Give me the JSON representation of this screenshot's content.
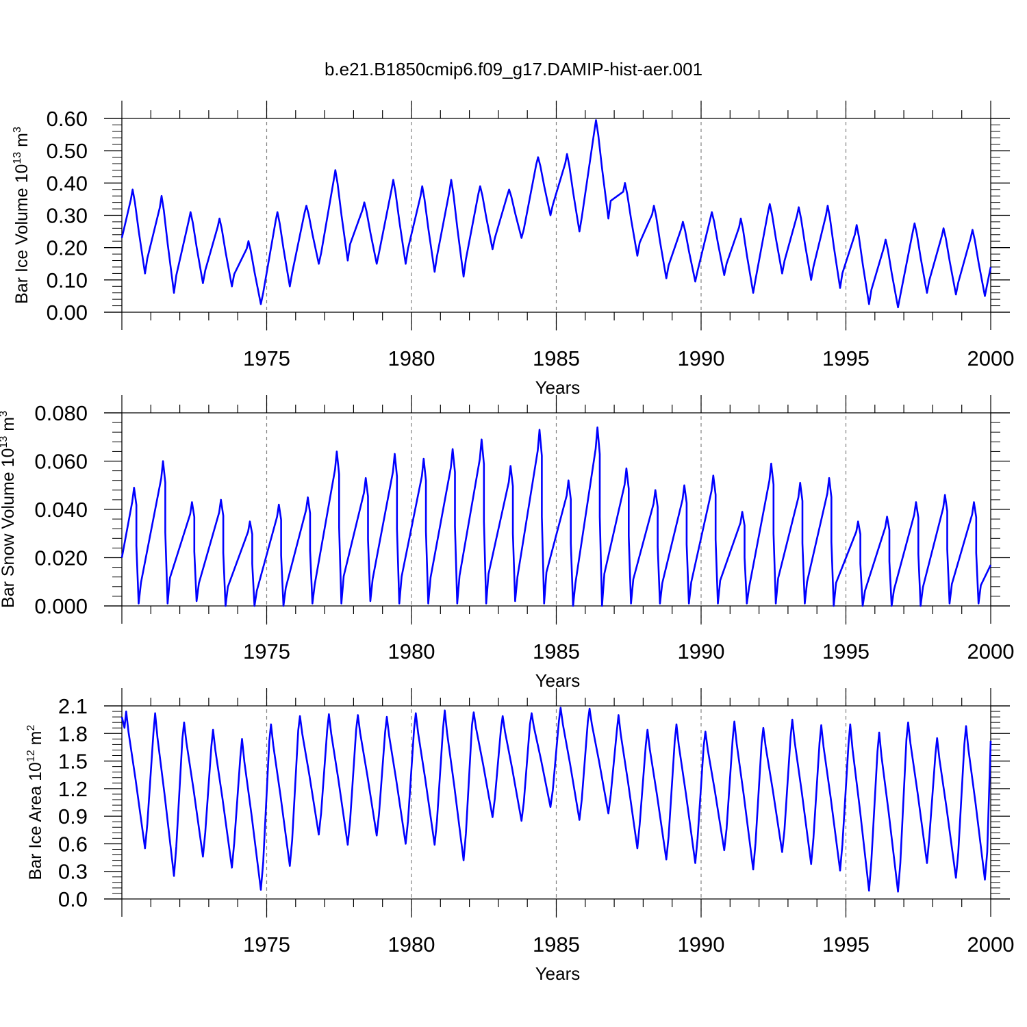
{
  "title": "b.e21.B1850cmip6.f09_g17.DAMIP-hist-aer.001",
  "colors": {
    "series": "#0000ff",
    "axis": "#000000",
    "grid": "#7f7f7f"
  },
  "x_domain": [
    1970.0,
    2000.0
  ],
  "x_ticks": [
    1975,
    1980,
    1985,
    1990,
    1995,
    2000
  ],
  "chart_data": [
    {
      "type": "line",
      "name": "ice-volume",
      "xlabel": "Years",
      "ylabel_main": "Bar Ice Volume 10",
      "ylabel_sup": "13",
      "ylabel_unit": " m",
      "ylabel_unit_sup": "3",
      "ylim": [
        0.0,
        0.6
      ],
      "y_ticks": [
        "0.00",
        "0.10",
        "0.20",
        "0.30",
        "0.40",
        "0.50",
        "0.60"
      ],
      "y_tick_values": [
        0.0,
        0.1,
        0.2,
        0.3,
        0.4,
        0.5,
        0.6
      ],
      "annual_peaks": [
        0.38,
        0.36,
        0.31,
        0.29,
        0.22,
        0.31,
        0.33,
        0.44,
        0.34,
        0.41,
        0.39,
        0.41,
        0.39,
        0.38,
        0.48,
        0.49,
        0.595,
        0.4,
        0.33,
        0.28,
        0.31,
        0.29,
        0.335,
        0.325,
        0.33,
        0.27,
        0.225,
        0.275,
        0.26,
        0.255
      ],
      "annual_troughs": [
        0.12,
        0.06,
        0.09,
        0.08,
        0.025,
        0.08,
        0.15,
        0.16,
        0.15,
        0.15,
        0.125,
        0.11,
        0.195,
        0.23,
        0.3,
        0.25,
        0.29,
        0.175,
        0.105,
        0.095,
        0.115,
        0.06,
        0.12,
        0.1,
        0.075,
        0.025,
        0.015,
        0.06,
        0.055,
        0.05
      ],
      "peak_phase": 0.37,
      "trough_phase": 0.8,
      "start_value": 0.23,
      "end_value": 0.14
    },
    {
      "type": "line",
      "name": "snow-volume",
      "xlabel": "Years",
      "ylabel_main": "Bar Snow Volume 10",
      "ylabel_sup": "13",
      "ylabel_unit": " m",
      "ylabel_unit_sup": "3",
      "ylim": [
        0.0,
        0.08
      ],
      "y_ticks": [
        "0.000",
        "0.020",
        "0.040",
        "0.060",
        "0.080"
      ],
      "y_tick_values": [
        0.0,
        0.02,
        0.04,
        0.06,
        0.08
      ],
      "annual_peaks": [
        0.049,
        0.06,
        0.043,
        0.044,
        0.035,
        0.042,
        0.045,
        0.064,
        0.053,
        0.063,
        0.061,
        0.065,
        0.069,
        0.058,
        0.073,
        0.052,
        0.074,
        0.057,
        0.048,
        0.05,
        0.054,
        0.039,
        0.059,
        0.051,
        0.053,
        0.035,
        0.037,
        0.043,
        0.046,
        0.043
      ],
      "annual_troughs": [
        0.001,
        0.001,
        0.002,
        0.0,
        0.0,
        0.0,
        0.001,
        0.001,
        0.002,
        0.001,
        0.001,
        0.001,
        0.001,
        0.002,
        0.001,
        0.0,
        0.0,
        0.001,
        0.001,
        0.001,
        0.001,
        0.001,
        0.001,
        0.001,
        0.0,
        0.0,
        0.0,
        0.0,
        0.001,
        0.001
      ],
      "peak_phase": 0.42,
      "trough_phase": 0.58,
      "start_value": 0.02,
      "end_value": 0.017
    },
    {
      "type": "line",
      "name": "ice-area",
      "xlabel": "Years",
      "ylabel_main": "Bar Ice Area 10",
      "ylabel_sup": "12",
      "ylabel_unit": " m",
      "ylabel_unit_sup": "2",
      "ylim": [
        0.0,
        2.1
      ],
      "y_ticks": [
        "0.0",
        "0.3",
        "0.6",
        "0.9",
        "1.2",
        "1.5",
        "1.8",
        "2.1"
      ],
      "y_tick_values": [
        0.0,
        0.3,
        0.6,
        0.9,
        1.2,
        1.5,
        1.8,
        2.1
      ],
      "annual_peaks": [
        2.04,
        2.02,
        1.92,
        1.84,
        1.74,
        1.9,
        1.99,
        2.01,
        2.0,
        1.98,
        2.02,
        2.05,
        2.03,
        1.99,
        2.02,
        2.08,
        2.07,
        2.0,
        1.84,
        1.9,
        1.82,
        1.93,
        1.86,
        1.95,
        1.89,
        1.9,
        1.81,
        1.92,
        1.75,
        1.88
      ],
      "annual_troughs": [
        0.55,
        0.25,
        0.46,
        0.34,
        0.1,
        0.36,
        0.7,
        0.59,
        0.69,
        0.6,
        0.59,
        0.42,
        0.89,
        0.85,
        1.0,
        0.86,
        0.93,
        0.55,
        0.43,
        0.39,
        0.53,
        0.32,
        0.51,
        0.38,
        0.31,
        0.09,
        0.08,
        0.39,
        0.23,
        0.21
      ],
      "peak_phase": 0.15,
      "trough_phase": 0.8,
      "start_value": 1.98,
      "end_value": 1.72
    }
  ]
}
